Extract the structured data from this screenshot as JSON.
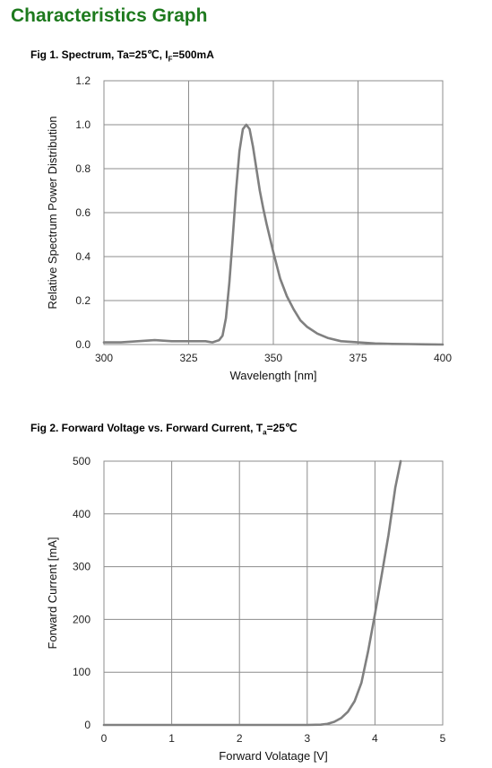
{
  "page": {
    "title": "Characteristics Graph"
  },
  "chart_data": [
    {
      "type": "line",
      "title_parts": {
        "pre": "Fig 1. Spectrum, Ta=25℃, I",
        "sub": "F",
        "post": "=500mA"
      },
      "xlabel": "Wavelength [nm]",
      "ylabel": "Relative Spectrum Power Distribution",
      "xlim": [
        300,
        400
      ],
      "ylim": [
        0,
        1.2
      ],
      "x_ticks": [
        "300",
        "325",
        "350",
        "375",
        "400"
      ],
      "y_ticks": [
        "0.0",
        "0.2",
        "0.4",
        "0.6",
        "0.8",
        "1.0",
        "1.2"
      ],
      "grid": true,
      "line_color": "#808080",
      "series": [
        {
          "x": [
            300,
            305,
            310,
            315,
            320,
            325,
            330,
            332,
            334,
            335,
            336,
            337,
            338,
            339,
            340,
            341,
            342,
            343,
            344,
            345,
            346,
            347,
            348,
            350,
            352,
            354,
            356,
            358,
            360,
            363,
            366,
            370,
            375,
            380,
            385,
            390,
            395,
            400
          ],
          "y": [
            0.01,
            0.01,
            0.015,
            0.02,
            0.015,
            0.015,
            0.015,
            0.01,
            0.02,
            0.04,
            0.12,
            0.28,
            0.48,
            0.7,
            0.88,
            0.98,
            1.0,
            0.98,
            0.9,
            0.8,
            0.7,
            0.62,
            0.55,
            0.42,
            0.3,
            0.22,
            0.16,
            0.11,
            0.08,
            0.05,
            0.03,
            0.015,
            0.01,
            0.005,
            0.003,
            0.002,
            0.001,
            0.0
          ]
        }
      ]
    },
    {
      "type": "line",
      "title_parts": {
        "pre": "Fig 2. Forward Voltage vs. Forward Current, T",
        "sub": "a",
        "post": "=25℃"
      },
      "xlabel": "Forward  Volatage [V]",
      "ylabel": "Forward Current [mA]",
      "xlim": [
        0,
        5
      ],
      "ylim": [
        0,
        500
      ],
      "x_ticks": [
        "0",
        "1",
        "2",
        "3",
        "4",
        "5"
      ],
      "y_ticks": [
        "0",
        "100",
        "200",
        "300",
        "400",
        "500"
      ],
      "grid": true,
      "line_color": "#808080",
      "series": [
        {
          "x": [
            0,
            1,
            2,
            3,
            3.2,
            3.3,
            3.4,
            3.5,
            3.6,
            3.7,
            3.8,
            3.9,
            4.0,
            4.1,
            4.2,
            4.3,
            4.38
          ],
          "y": [
            0,
            0,
            0,
            0,
            0.5,
            2,
            6,
            13,
            25,
            45,
            80,
            140,
            210,
            285,
            360,
            450,
            500
          ]
        }
      ]
    }
  ]
}
